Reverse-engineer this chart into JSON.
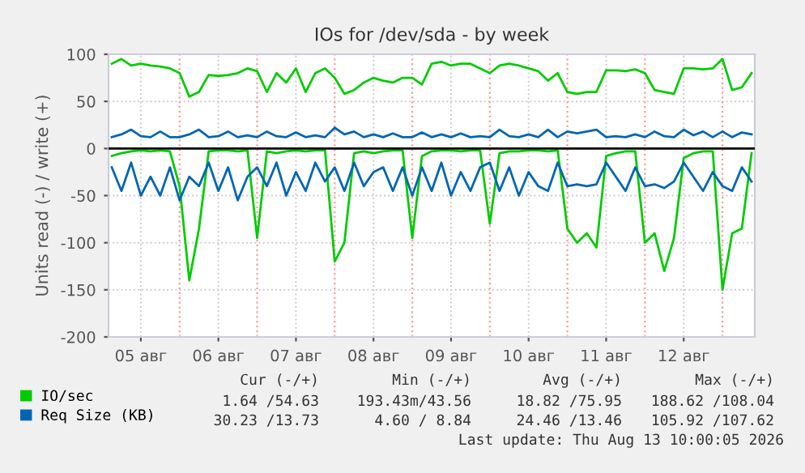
{
  "chart_data": {
    "type": "line",
    "title": "IOs for /dev/sda - by week",
    "ylabel": "Units read (-) / write (+)",
    "x": [
      "2026-08-05T03:00",
      "2026-08-05T06:00",
      "2026-08-05T09:00",
      "2026-08-05T12:00",
      "2026-08-05T15:00",
      "2026-08-05T18:00",
      "2026-08-05T21:00",
      "2026-08-06T00:00",
      "2026-08-06T03:00",
      "2026-08-06T06:00",
      "2026-08-06T09:00",
      "2026-08-06T12:00",
      "2026-08-06T15:00",
      "2026-08-06T18:00",
      "2026-08-06T21:00",
      "2026-08-07T00:00",
      "2026-08-07T03:00",
      "2026-08-07T06:00",
      "2026-08-07T09:00",
      "2026-08-07T12:00",
      "2026-08-07T15:00",
      "2026-08-07T18:00",
      "2026-08-07T21:00",
      "2026-08-08T00:00",
      "2026-08-08T03:00",
      "2026-08-08T06:00",
      "2026-08-08T09:00",
      "2026-08-08T12:00",
      "2026-08-08T15:00",
      "2026-08-08T18:00",
      "2026-08-08T21:00",
      "2026-08-09T00:00",
      "2026-08-09T03:00",
      "2026-08-09T06:00",
      "2026-08-09T09:00",
      "2026-08-09T12:00",
      "2026-08-09T15:00",
      "2026-08-09T18:00",
      "2026-08-09T21:00",
      "2026-08-10T00:00",
      "2026-08-10T03:00",
      "2026-08-10T06:00",
      "2026-08-10T09:00",
      "2026-08-10T12:00",
      "2026-08-10T15:00",
      "2026-08-10T18:00",
      "2026-08-10T21:00",
      "2026-08-11T00:00",
      "2026-08-11T03:00",
      "2026-08-11T06:00",
      "2026-08-11T09:00",
      "2026-08-11T12:00",
      "2026-08-11T15:00",
      "2026-08-11T18:00",
      "2026-08-11T21:00",
      "2026-08-12T00:00",
      "2026-08-12T03:00",
      "2026-08-12T06:00",
      "2026-08-12T09:00",
      "2026-08-12T12:00",
      "2026-08-12T15:00",
      "2026-08-12T18:00",
      "2026-08-12T21:00",
      "2026-08-13T00:00",
      "2026-08-13T03:00",
      "2026-08-13T06:00",
      "2026-08-13T09:00"
    ],
    "series": [
      {
        "name": "IO/sec",
        "color": "#00cc00",
        "values": [
          90,
          95,
          88,
          90,
          88,
          87,
          85,
          80,
          55,
          60,
          78,
          77,
          78,
          80,
          85,
          82,
          60,
          80,
          70,
          85,
          60,
          80,
          85,
          75,
          58,
          62,
          70,
          75,
          72,
          70,
          75,
          75,
          68,
          90,
          92,
          88,
          90,
          90,
          85,
          80,
          88,
          90,
          88,
          85,
          82,
          72,
          80,
          60,
          58,
          60,
          60,
          83,
          83,
          82,
          84,
          80,
          62,
          60,
          58,
          85,
          85,
          84,
          85,
          95,
          62,
          65,
          80
        ]
      },
      {
        "color": "#00cc00",
        "values": [
          -8,
          -5,
          -3,
          -2,
          -3,
          -2,
          -3,
          -40,
          -140,
          -85,
          -3,
          -2,
          -2,
          -3,
          -2,
          -95,
          -3,
          -5,
          -3,
          -2,
          -3,
          -2,
          -2,
          -120,
          -100,
          -5,
          -3,
          -5,
          -3,
          -2,
          -2,
          -95,
          -8,
          -3,
          -2,
          -2,
          -3,
          -2,
          -2,
          -80,
          -5,
          -3,
          -3,
          -2,
          -2,
          -3,
          -2,
          -85,
          -100,
          -90,
          -105,
          -8,
          -5,
          -3,
          -3,
          -100,
          -90,
          -130,
          -95,
          -10,
          -5,
          -3,
          -3,
          -150,
          -90,
          -85,
          -5
        ]
      },
      {
        "name": "Req Size (KB)",
        "color": "#0066b3",
        "values": [
          12,
          15,
          20,
          13,
          12,
          18,
          12,
          12,
          15,
          20,
          12,
          13,
          18,
          12,
          14,
          12,
          18,
          13,
          12,
          17,
          12,
          14,
          12,
          22,
          15,
          18,
          12,
          15,
          12,
          16,
          12,
          12,
          17,
          12,
          15,
          12,
          16,
          12,
          13,
          12,
          20,
          13,
          12,
          15,
          12,
          20,
          12,
          18,
          16,
          18,
          20,
          12,
          13,
          12,
          15,
          12,
          18,
          13,
          12,
          20,
          14,
          18,
          12,
          18,
          12,
          17,
          15
        ]
      },
      {
        "color": "#0066b3",
        "values": [
          -20,
          -45,
          -15,
          -50,
          -30,
          -50,
          -20,
          -55,
          -30,
          -40,
          -15,
          -45,
          -20,
          -55,
          -30,
          -20,
          -40,
          -15,
          -50,
          -25,
          -45,
          -15,
          -35,
          -20,
          -45,
          -15,
          -40,
          -25,
          -20,
          -45,
          -20,
          -50,
          -20,
          -45,
          -15,
          -50,
          -25,
          -45,
          -20,
          -15,
          -45,
          -20,
          -50,
          -25,
          -40,
          -45,
          -15,
          -40,
          -38,
          -40,
          -38,
          -15,
          -30,
          -45,
          -20,
          -40,
          -38,
          -42,
          -35,
          -15,
          -30,
          -45,
          -25,
          -40,
          -45,
          -20,
          -35
        ]
      }
    ],
    "xlim": [
      "2026-08-05T02:00",
      "2026-08-13T10:00"
    ],
    "xticks": [
      {
        "value": "2026-08-05T12:00",
        "label": "05 авг"
      },
      {
        "value": "2026-08-06T12:00",
        "label": "06 авг"
      },
      {
        "value": "2026-08-07T12:00",
        "label": "07 авг"
      },
      {
        "value": "2026-08-08T12:00",
        "label": "08 авг"
      },
      {
        "value": "2026-08-09T12:00",
        "label": "09 авг"
      },
      {
        "value": "2026-08-10T12:00",
        "label": "10 авг"
      },
      {
        "value": "2026-08-11T12:00",
        "label": "11 авг"
      },
      {
        "value": "2026-08-12T12:00",
        "label": "12 авг"
      }
    ],
    "ylim": [
      -200,
      100
    ],
    "yticks": [
      -200,
      -150,
      -100,
      -50,
      0,
      50,
      100
    ],
    "ref_lines": [
      {
        "axis": "y",
        "value": 0,
        "color": "#000000",
        "line_style": "solid"
      },
      {
        "axis": "x",
        "value": "2026-08-06T00:00",
        "color": "#ff9999",
        "line_style": "dotted"
      },
      {
        "axis": "x",
        "value": "2026-08-07T00:00",
        "color": "#ff9999",
        "line_style": "dotted"
      },
      {
        "axis": "x",
        "value": "2026-08-08T00:00",
        "color": "#ff9999",
        "line_style": "dotted"
      },
      {
        "axis": "x",
        "value": "2026-08-09T00:00",
        "color": "#ff9999",
        "line_style": "dotted"
      },
      {
        "axis": "x",
        "value": "2026-08-10T00:00",
        "color": "#ff9999",
        "line_style": "dotted"
      },
      {
        "axis": "x",
        "value": "2026-08-11T00:00",
        "color": "#ff9999",
        "line_style": "dotted"
      },
      {
        "axis": "x",
        "value": "2026-08-12T00:00",
        "color": "#ff9999",
        "line_style": "dotted"
      },
      {
        "axis": "x",
        "value": "2026-08-13T00:00",
        "color": "#ff9999",
        "line_style": "dotted"
      }
    ],
    "grid": true,
    "legend": "bottom left",
    "marker": "none",
    "line_style": "solid",
    "annotations": [
      "Cur (-/+)",
      "Min (-/+)",
      "Avg (-/+)",
      "Max (-/+)",
      "1.64 /54.63",
      "193.43m/43.56",
      "18.82 /75.95",
      "188.62 /108.04",
      "30.23 /13.73",
      "4.60 / 8.84",
      "24.46 /13.46",
      "105.92 /107.62",
      "Last update: Thu Aug 13 10:00:05 2026"
    ]
  }
}
